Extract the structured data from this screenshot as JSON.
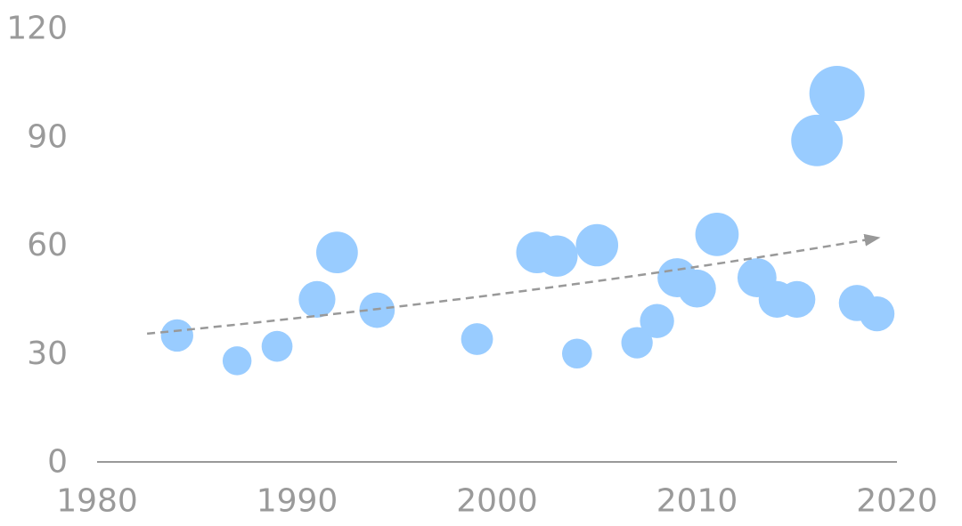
{
  "chart_data": {
    "type": "scatter",
    "title": "",
    "xlabel": "",
    "ylabel": "",
    "xlim": [
      1980,
      2020
    ],
    "ylim": [
      0,
      120
    ],
    "x_ticks": [
      1980,
      1990,
      2000,
      2010,
      2020
    ],
    "y_ticks": [
      0,
      30,
      60,
      90,
      120
    ],
    "grid": false,
    "legend": "none",
    "colors": {
      "bubble": "#99CCFF",
      "trend": "#999999",
      "axis": "#999999",
      "tick_text": "#9a9a9a"
    },
    "points": [
      {
        "x": 1984,
        "y": 35,
        "size": 35
      },
      {
        "x": 1987,
        "y": 28,
        "size": 28
      },
      {
        "x": 1989,
        "y": 32,
        "size": 32
      },
      {
        "x": 1991,
        "y": 45,
        "size": 45
      },
      {
        "x": 1992,
        "y": 58,
        "size": 58
      },
      {
        "x": 1994,
        "y": 42,
        "size": 42
      },
      {
        "x": 1999,
        "y": 34,
        "size": 34
      },
      {
        "x": 2002,
        "y": 58,
        "size": 58
      },
      {
        "x": 2003,
        "y": 57,
        "size": 57
      },
      {
        "x": 2004,
        "y": 30,
        "size": 30
      },
      {
        "x": 2005,
        "y": 60,
        "size": 60
      },
      {
        "x": 2007,
        "y": 33,
        "size": 33
      },
      {
        "x": 2008,
        "y": 39,
        "size": 39
      },
      {
        "x": 2009,
        "y": 51,
        "size": 51
      },
      {
        "x": 2010,
        "y": 48,
        "size": 48
      },
      {
        "x": 2011,
        "y": 63,
        "size": 63
      },
      {
        "x": 2013,
        "y": 51,
        "size": 51
      },
      {
        "x": 2014,
        "y": 45,
        "size": 45
      },
      {
        "x": 2015,
        "y": 45,
        "size": 45
      },
      {
        "x": 2016,
        "y": 89,
        "size": 89
      },
      {
        "x": 2017,
        "y": 102,
        "size": 102
      },
      {
        "x": 2018,
        "y": 44,
        "size": 44
      },
      {
        "x": 2019,
        "y": 41,
        "size": 41
      }
    ],
    "trendline": {
      "type": "exponential",
      "style": "dashed-arrow",
      "points": [
        {
          "x": 1982.5,
          "y": 35.5
        },
        {
          "x": 2019,
          "y": 62
        }
      ]
    }
  }
}
